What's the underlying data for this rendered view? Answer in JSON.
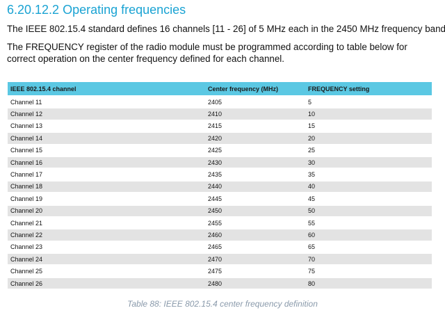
{
  "section": {
    "heading": "6.20.12.2 Operating frequencies",
    "para1": "The IEEE 802.15.4 standard defines 16 channels [11 - 26] of 5 MHz each in the 2450 MHz frequency band.",
    "para2": "The FREQUENCY register of the radio module must be programmed according to table below for correct operation on the center frequency defined for each channel."
  },
  "table": {
    "headers": [
      "IEEE 802.15.4 channel",
      "Center frequency (MHz)",
      "FREQUENCY setting"
    ],
    "rows": [
      [
        "Channel 11",
        "2405",
        "5"
      ],
      [
        "Channel 12",
        "2410",
        "10"
      ],
      [
        "Channel 13",
        "2415",
        "15"
      ],
      [
        "Channel 14",
        "2420",
        "20"
      ],
      [
        "Channel 15",
        "2425",
        "25"
      ],
      [
        "Channel 16",
        "2430",
        "30"
      ],
      [
        "Channel 17",
        "2435",
        "35"
      ],
      [
        "Channel 18",
        "2440",
        "40"
      ],
      [
        "Channel 19",
        "2445",
        "45"
      ],
      [
        "Channel 20",
        "2450",
        "50"
      ],
      [
        "Channel 21",
        "2455",
        "55"
      ],
      [
        "Channel 22",
        "2460",
        "60"
      ],
      [
        "Channel 23",
        "2465",
        "65"
      ],
      [
        "Channel 24",
        "2470",
        "70"
      ],
      [
        "Channel 25",
        "2475",
        "75"
      ],
      [
        "Channel 26",
        "2480",
        "80"
      ]
    ],
    "caption": "Table 88: IEEE 802.15.4 center frequency definition"
  },
  "colors": {
    "heading": "#1aa3d3",
    "table_header_bg": "#5bc8e3",
    "row_stripe": "#e3e3e3",
    "caption": "#8a9aab"
  }
}
